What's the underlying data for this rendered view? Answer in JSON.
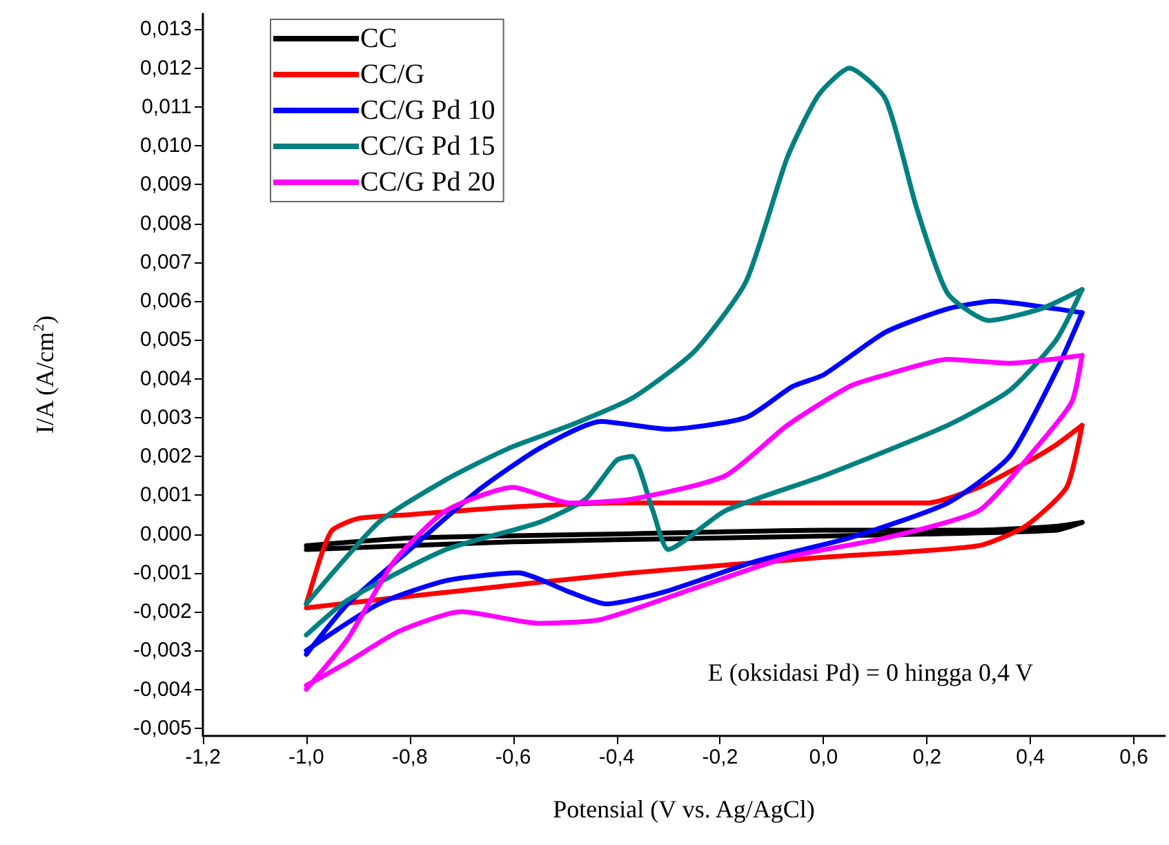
{
  "chart_data": {
    "type": "line",
    "xlabel": "Potensial (V vs. Ag/AgCl)",
    "ylabel": "I/A (A/cm$^{2}$)",
    "annotations": [
      "E (oksidasi Pd) = 0 hingga 0,4 V"
    ],
    "xlim": [
      -1.2,
      0.66
    ],
    "ylim": [
      -0.0052,
      0.0134
    ],
    "xticks": [
      {
        "value": -1.2,
        "label": "-1,2"
      },
      {
        "value": -1.0,
        "label": "-1,0"
      },
      {
        "value": -0.8,
        "label": "-0,8"
      },
      {
        "value": -0.6,
        "label": "-0,6"
      },
      {
        "value": -0.4,
        "label": "-0,4"
      },
      {
        "value": -0.2,
        "label": "-0,2"
      },
      {
        "value": 0.0,
        "label": "0,0"
      },
      {
        "value": 0.2,
        "label": "0,2"
      },
      {
        "value": 0.4,
        "label": "0,4"
      },
      {
        "value": 0.6,
        "label": "0,6"
      }
    ],
    "yticks": [
      {
        "value": -0.005,
        "label": "-0,005"
      },
      {
        "value": -0.004,
        "label": "-0,004"
      },
      {
        "value": -0.003,
        "label": "-0,003"
      },
      {
        "value": -0.002,
        "label": "-0,002"
      },
      {
        "value": -0.001,
        "label": "-0,001"
      },
      {
        "value": 0.0,
        "label": "0,000"
      },
      {
        "value": 0.001,
        "label": "0,001"
      },
      {
        "value": 0.002,
        "label": "0,002"
      },
      {
        "value": 0.003,
        "label": "0,003"
      },
      {
        "value": 0.004,
        "label": "0,004"
      },
      {
        "value": 0.005,
        "label": "0,005"
      },
      {
        "value": 0.006,
        "label": "0,006"
      },
      {
        "value": 0.007,
        "label": "0,007"
      },
      {
        "value": 0.008,
        "label": "0,008"
      },
      {
        "value": 0.009,
        "label": "0,009"
      },
      {
        "value": 0.01,
        "label": "0,010"
      },
      {
        "value": 0.011,
        "label": "0,011"
      },
      {
        "value": 0.012,
        "label": "0,012"
      },
      {
        "value": 0.013,
        "label": "0,013"
      }
    ],
    "grid": false,
    "legend": "top left",
    "line_style": "solid",
    "series": [
      {
        "name": "CC",
        "color": "#000000",
        "x": [
          -1.0,
          -0.8,
          -0.4,
          0.0,
          0.3,
          0.45,
          0.5
        ],
        "values": [
          -0.0003,
          -0.0001,
          0.0,
          0.0001,
          0.0001,
          0.0002,
          0.0003
        ]
      },
      {
        "color": "#000000",
        "x": [
          0.5,
          0.45,
          0.2,
          -0.2,
          -0.6,
          -1.0
        ],
        "values": [
          0.0003,
          0.0001,
          0.0,
          -0.0001,
          -0.0002,
          -0.0004
        ]
      },
      {
        "name": "CC/G",
        "color": "#ff0000",
        "x": [
          -1.0,
          -0.97,
          -0.95,
          -0.9,
          -0.8,
          -0.6,
          -0.4,
          -0.2,
          0.0,
          0.2,
          0.3,
          0.4,
          0.45,
          0.5
        ],
        "values": [
          -0.0018,
          -0.0005,
          0.0001,
          0.0004,
          0.0005,
          0.0007,
          0.0008,
          0.0008,
          0.0008,
          0.0008,
          0.0012,
          0.0019,
          0.0023,
          0.0028
        ]
      },
      {
        "color": "#ff0000",
        "x": [
          0.5,
          0.47,
          0.39,
          0.3,
          0.0,
          -0.37,
          -0.73,
          -1.0
        ],
        "values": [
          0.0028,
          0.0012,
          0.0002,
          -0.0003,
          -0.0006,
          -0.001,
          -0.0015,
          -0.0019
        ]
      },
      {
        "name": "CC/G Pd 10",
        "color": "#0000ff",
        "x": [
          -1.0,
          -0.92,
          -0.8,
          -0.67,
          -0.55,
          -0.43,
          -0.3,
          -0.15,
          -0.06,
          0.0,
          0.12,
          0.24,
          0.33,
          0.45,
          0.5
        ],
        "values": [
          -0.0031,
          -0.0018,
          -0.0004,
          0.0011,
          0.0022,
          0.0029,
          0.0027,
          0.003,
          0.0038,
          0.0041,
          0.0052,
          0.0058,
          0.006,
          0.0058,
          0.0057
        ]
      },
      {
        "color": "#0000ff",
        "x": [
          0.5,
          0.45,
          0.36,
          0.24,
          0.05,
          -0.13,
          -0.31,
          -0.42,
          -0.49,
          -0.59,
          -0.73,
          -0.86,
          -1.0
        ],
        "values": [
          0.0057,
          0.0042,
          0.002,
          0.0008,
          -0.0001,
          -0.0007,
          -0.0015,
          -0.0018,
          -0.0015,
          -0.001,
          -0.0012,
          -0.0018,
          -0.003
        ]
      },
      {
        "name": "CC/G Pd 15",
        "color": "#008080",
        "x": [
          -1.0,
          -0.86,
          -0.73,
          -0.61,
          -0.49,
          -0.37,
          -0.25,
          -0.15,
          -0.07,
          -0.01,
          0.05,
          0.12,
          0.18,
          0.24,
          0.32,
          0.42,
          0.5
        ],
        "values": [
          -0.0018,
          0.0003,
          0.0014,
          0.0022,
          0.0028,
          0.0035,
          0.0047,
          0.0065,
          0.0097,
          0.0113,
          0.012,
          0.0112,
          0.0084,
          0.0062,
          0.0055,
          0.0058,
          0.0063
        ]
      },
      {
        "color": "#008080",
        "x": [
          0.5,
          0.45,
          0.36,
          0.24,
          0.0,
          -0.19,
          -0.3,
          -0.33,
          -0.37,
          -0.4,
          -0.46,
          -0.55,
          -0.73,
          -0.92,
          -1.0
        ],
        "values": [
          0.0063,
          0.005,
          0.0037,
          0.0028,
          0.0015,
          0.0006,
          -0.0004,
          0.0006,
          0.002,
          0.0019,
          0.0009,
          0.0003,
          -0.0004,
          -0.0017,
          -0.0026
        ]
      },
      {
        "name": "CC/G Pd 20",
        "color": "#ff00ff",
        "x": [
          -1.0,
          -0.92,
          -0.83,
          -0.73,
          -0.6,
          -0.49,
          -0.37,
          -0.19,
          -0.07,
          0.05,
          0.12,
          0.24,
          0.36,
          0.5
        ],
        "values": [
          -0.004,
          -0.0027,
          -0.0007,
          0.0006,
          0.0012,
          0.0008,
          0.0009,
          0.0015,
          0.0028,
          0.0038,
          0.0041,
          0.0045,
          0.0044,
          0.0046
        ]
      },
      {
        "color": "#ff00ff",
        "x": [
          0.5,
          0.48,
          0.41,
          0.3,
          0.12,
          -0.07,
          -0.25,
          -0.43,
          -0.55,
          -0.7,
          -0.82,
          -0.92,
          -1.0
        ],
        "values": [
          0.0046,
          0.0034,
          0.0022,
          0.0006,
          -0.0001,
          -0.0006,
          -0.0014,
          -0.0022,
          -0.0023,
          -0.002,
          -0.0025,
          -0.0033,
          -0.0039
        ]
      }
    ]
  }
}
